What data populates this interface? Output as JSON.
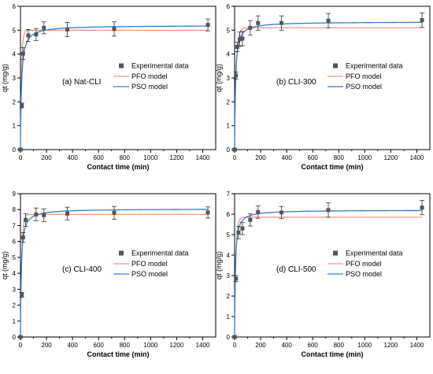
{
  "colors": {
    "experimental": "#555555",
    "pfo": "#f47a6e",
    "pso": "#2f7fd1",
    "axis": "#000000"
  },
  "legend": {
    "experimental": "Experimental data",
    "pfo": "PFO model",
    "pso": "PSO model"
  },
  "chart_data": [
    {
      "type": "scatter",
      "panel_label": "(a) Nat-CLI",
      "xlabel": "Contact time (min)",
      "ylabel": "qt (mg/g)",
      "xlim": [
        0,
        1500
      ],
      "ylim": [
        0,
        6
      ],
      "xticks": [
        0,
        200,
        400,
        600,
        800,
        1000,
        1200,
        1400
      ],
      "yticks": [
        0,
        1,
        2,
        3,
        4,
        5,
        6
      ],
      "legend_position": "right",
      "experimental": {
        "x": [
          0,
          10,
          20,
          60,
          120,
          180,
          360,
          720,
          1440
        ],
        "y": [
          0.0,
          1.85,
          4.02,
          4.78,
          4.82,
          5.1,
          5.03,
          5.05,
          5.22
        ],
        "err": [
          0.05,
          0.1,
          0.25,
          0.25,
          0.25,
          0.25,
          0.3,
          0.3,
          0.25
        ]
      },
      "pfo_model": {
        "qe": 5.0,
        "k": 0.12
      },
      "pso_model": {
        "qe": 5.2,
        "k": 0.025
      }
    },
    {
      "type": "scatter",
      "panel_label": "(b) CLI-300",
      "xlabel": "Contact time (min)",
      "ylabel": "qt (mg/g)",
      "xlim": [
        0,
        1500
      ],
      "ylim": [
        0,
        6
      ],
      "xticks": [
        0,
        200,
        400,
        600,
        800,
        1000,
        1200,
        1400
      ],
      "yticks": [
        0,
        1,
        2,
        3,
        4,
        5,
        6
      ],
      "legend_position": "right",
      "experimental": {
        "x": [
          0,
          10,
          20,
          40,
          60,
          120,
          180,
          360,
          720,
          1440
        ],
        "y": [
          0.0,
          3.1,
          4.3,
          4.62,
          4.65,
          5.1,
          5.3,
          5.3,
          5.4,
          5.42
        ],
        "err": [
          0.05,
          0.15,
          0.2,
          0.3,
          0.3,
          0.3,
          0.3,
          0.3,
          0.3,
          0.3
        ]
      },
      "pfo_model": {
        "qe": 5.1,
        "k": 0.08
      },
      "pso_model": {
        "qe": 5.35,
        "k": 0.03
      }
    },
    {
      "type": "scatter",
      "panel_label": "(c) CLI-400",
      "xlabel": "Contact time (min)",
      "ylabel": "qt (mg/g)",
      "xlim": [
        0,
        1500
      ],
      "ylim": [
        0,
        9
      ],
      "xticks": [
        0,
        200,
        400,
        600,
        800,
        1000,
        1200,
        1400
      ],
      "yticks": [
        0,
        1,
        2,
        3,
        4,
        5,
        6,
        7,
        8,
        9
      ],
      "legend_position": "right",
      "experimental": {
        "x": [
          0,
          10,
          20,
          40,
          120,
          180,
          360,
          720,
          1440
        ],
        "y": [
          0.0,
          2.65,
          6.25,
          7.35,
          7.7,
          7.65,
          7.75,
          7.8,
          7.82
        ],
        "err": [
          0.05,
          0.15,
          0.3,
          0.4,
          0.4,
          0.4,
          0.4,
          0.4,
          0.35
        ]
      },
      "pfo_model": {
        "qe": 7.7,
        "k": 0.1
      },
      "pso_model": {
        "qe": 8.05,
        "k": 0.02
      }
    },
    {
      "type": "scatter",
      "panel_label": "(d) CLI-500",
      "xlabel": "Contact time (min)",
      "ylabel": "qt (mg/g)",
      "xlim": [
        0,
        1500
      ],
      "ylim": [
        0,
        7
      ],
      "xticks": [
        0,
        200,
        400,
        600,
        800,
        1000,
        1200,
        1400
      ],
      "yticks": [
        0,
        1,
        2,
        3,
        4,
        5,
        6,
        7
      ],
      "legend_position": "right",
      "experimental": {
        "x": [
          0,
          10,
          30,
          60,
          120,
          180,
          360,
          720,
          1440
        ],
        "y": [
          0.0,
          2.85,
          5.1,
          5.3,
          5.72,
          6.1,
          6.08,
          6.2,
          6.32
        ],
        "err": [
          0.05,
          0.15,
          0.3,
          0.3,
          0.3,
          0.3,
          0.3,
          0.35,
          0.35
        ]
      },
      "pfo_model": {
        "qe": 5.85,
        "k": 0.1
      },
      "pso_model": {
        "qe": 6.2,
        "k": 0.03
      }
    }
  ]
}
